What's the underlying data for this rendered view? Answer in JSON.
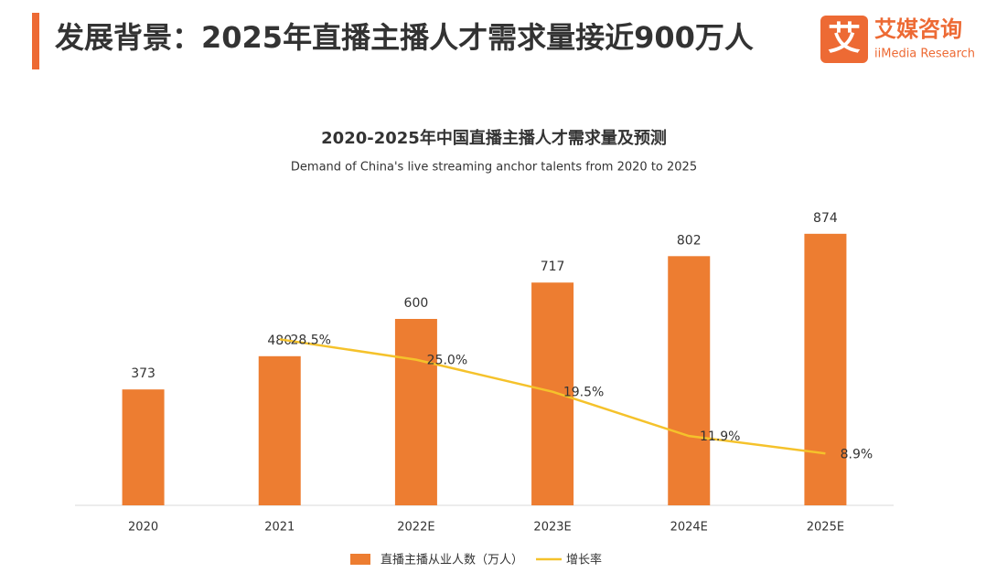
{
  "header": {
    "title": "发展背景：2025年直播主播人才需求量接近900万人",
    "logo_icon": "艾",
    "logo_name": "艾媒咨询",
    "logo_sub": "iiMedia Research"
  },
  "chart_data": {
    "type": "bar",
    "title": "2020-2025年中国直播主播人才需求量及预测",
    "subtitle": "Demand of China's live streaming anchor talents from 2020 to 2025",
    "categories": [
      "2020",
      "2021",
      "2022E",
      "2023E",
      "2024E",
      "2025E"
    ],
    "series": [
      {
        "name": "直播主播从业人数（万人）",
        "type": "bar",
        "color": "#ed7d31",
        "values": [
          373,
          480,
          600,
          717,
          802,
          874
        ]
      },
      {
        "name": "增长率",
        "type": "line",
        "axis": "y2",
        "color": "#f5c22b",
        "values": [
          null,
          28.5,
          25.0,
          19.5,
          11.9,
          8.9
        ],
        "value_labels": [
          null,
          "28.5%",
          "25.0%",
          "19.5%",
          "11.9%",
          "8.9%"
        ]
      }
    ],
    "ylim": [
      0,
      900
    ],
    "y2lim": [
      0,
      48
    ],
    "legend": "bottom"
  }
}
